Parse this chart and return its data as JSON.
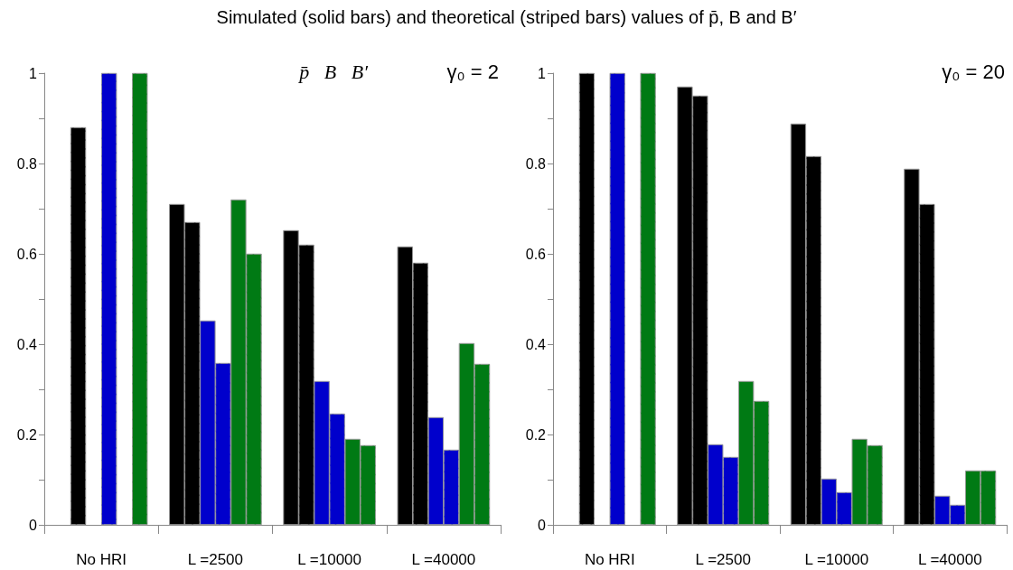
{
  "chart_data": [
    {
      "type": "bar",
      "title": "Simulated (solid bars) and theoretical (striped bars) values of p̄, B and B′",
      "annotations": [
        "p̄   B   B′",
        "γ₀ = 2"
      ],
      "categories": [
        "No HRI",
        "L =2500",
        "L =10000",
        "L =40000"
      ],
      "ylim": [
        0,
        1
      ],
      "yticks": [
        0,
        {
          "value": 0.1,
          "label": null
        },
        0.2,
        {
          "value": 0.3,
          "label": null
        },
        0.4,
        {
          "value": 0.5,
          "label": null
        },
        0.6,
        {
          "value": 0.7,
          "label": null
        },
        0.8,
        {
          "value": 0.9,
          "label": null
        },
        1
      ],
      "grid": false,
      "series": [
        {
          "color": "#000000",
          "values": [
            null,
            0.71,
            0.652,
            0.616
          ]
        },
        {
          "color": "#000000",
          "values": [
            0.88,
            0.67,
            0.62,
            0.58
          ]
        },
        {
          "color": "#0000cc",
          "values": [
            null,
            0.452,
            0.318,
            0.238
          ]
        },
        {
          "color": "#0000cc",
          "values": [
            1,
            0.358,
            0.246,
            0.166
          ]
        },
        {
          "color": "#007a14",
          "values": [
            null,
            0.72,
            0.19,
            0.402
          ]
        },
        {
          "color": "#007a14",
          "values": [
            1,
            0.6,
            0.176,
            0.356
          ]
        }
      ]
    },
    {
      "type": "bar",
      "annotations": [
        "γ₀ = 20"
      ],
      "categories": [
        "No HRI",
        "L =2500",
        "L =10000",
        "L =40000"
      ],
      "ylim": [
        0,
        1
      ],
      "yticks": [
        0,
        {
          "value": 0.1,
          "label": null
        },
        0.2,
        {
          "value": 0.3,
          "label": null
        },
        0.4,
        {
          "value": 0.5,
          "label": null
        },
        0.6,
        {
          "value": 0.7,
          "label": null
        },
        0.8,
        {
          "value": 0.9,
          "label": null
        },
        1
      ],
      "grid": false,
      "series": [
        {
          "color": "#000000",
          "values": [
            null,
            0.97,
            0.888,
            0.788
          ]
        },
        {
          "color": "#000000",
          "values": [
            1,
            0.95,
            0.816,
            0.71
          ]
        },
        {
          "color": "#0000cc",
          "values": [
            null,
            0.178,
            0.102,
            0.064
          ]
        },
        {
          "color": "#0000cc",
          "values": [
            1,
            0.15,
            0.072,
            0.044
          ]
        },
        {
          "color": "#007a14",
          "values": [
            null,
            0.318,
            0.19,
            0.12
          ]
        },
        {
          "color": "#007a14",
          "values": [
            1,
            0.274,
            0.176,
            0.12
          ]
        }
      ]
    }
  ]
}
